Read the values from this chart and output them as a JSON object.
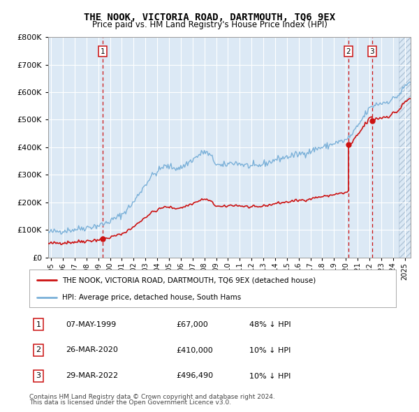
{
  "title": "THE NOOK, VICTORIA ROAD, DARTMOUTH, TQ6 9EX",
  "subtitle": "Price paid vs. HM Land Registry's House Price Index (HPI)",
  "legend_line1": "THE NOOK, VICTORIA ROAD, DARTMOUTH, TQ6 9EX (detached house)",
  "legend_line2": "HPI: Average price, detached house, South Hams",
  "footer1": "Contains HM Land Registry data © Crown copyright and database right 2024.",
  "footer2": "This data is licensed under the Open Government Licence v3.0.",
  "transactions": [
    {
      "num": 1,
      "date": "07-MAY-1999",
      "price": 67000,
      "pct": "48%",
      "dir": "↓",
      "x_year": 1999.37
    },
    {
      "num": 2,
      "date": "26-MAR-2020",
      "price": 410000,
      "pct": "10%",
      "dir": "↓",
      "x_year": 2020.23
    },
    {
      "num": 3,
      "date": "29-MAR-2022",
      "price": 496490,
      "pct": "10%",
      "dir": "↓",
      "x_year": 2022.23
    }
  ],
  "hpi_color": "#7ab0d8",
  "price_color": "#cc1111",
  "plot_bg_color": "#dce9f5",
  "ylim": [
    0,
    800000
  ],
  "xlim_start": 1994.75,
  "xlim_end": 2025.5,
  "future_start": 2024.5
}
